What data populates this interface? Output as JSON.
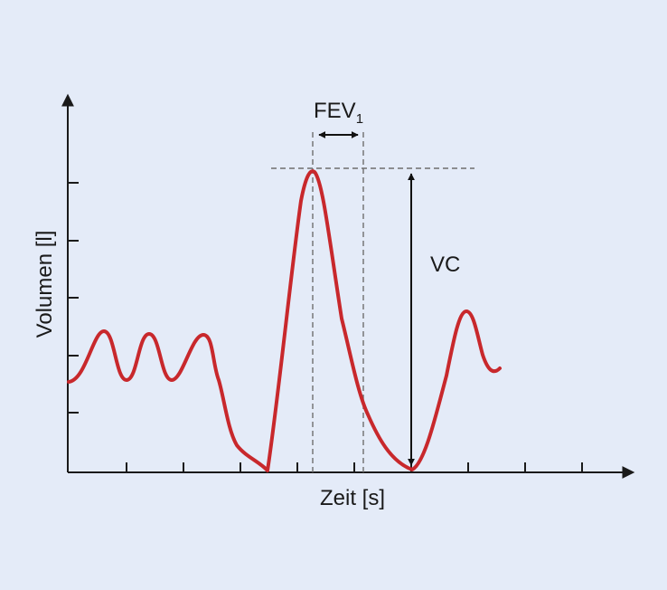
{
  "labels": {
    "y_axis": "Volumen [l]",
    "x_axis": "Zeit [s]",
    "fev_main": "FEV",
    "fev_sub": "1",
    "vc": "VC"
  },
  "colors": {
    "background": "#e4ebf8",
    "curve": "#c8282c",
    "axis": "#1a1a1a",
    "guide": "#6e6e6e"
  }
}
